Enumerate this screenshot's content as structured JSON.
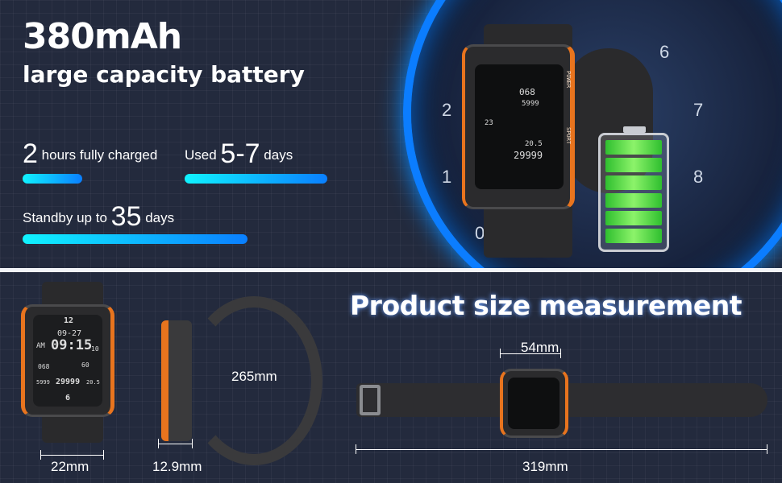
{
  "battery": {
    "title": "380mAh",
    "subtitle": "large capacity battery",
    "stats": [
      {
        "value": "2",
        "suffix": "hours fully charged",
        "prefix": "",
        "fill": 0.26
      },
      {
        "prefix": "Used",
        "value": "5-7",
        "suffix": "days",
        "fill": 1.0
      },
      {
        "prefix": "Standby up to",
        "value": "35",
        "suffix": "days",
        "fill": 1.0
      }
    ],
    "dial_numbers": [
      "0",
      "1",
      "2",
      "6",
      "7",
      "8"
    ],
    "battery_level": 1.0,
    "watch_face": {
      "heart": "068",
      "steps_small": "5999",
      "temp_left": "23",
      "temp": "20.5",
      "steps": "29999",
      "side_labels": [
        "SPORT",
        "POWER"
      ]
    }
  },
  "size": {
    "title": "Product size measurement",
    "front_watch": {
      "date": "09-27",
      "ampm": "AM",
      "time": "09:15",
      "seconds": "10",
      "top": "12",
      "bottom": "6",
      "heart": "068",
      "battery": "60",
      "steps_small": "5999",
      "steps": "29999",
      "temp": "20.5"
    },
    "width": "22mm",
    "thickness": "12.9mm",
    "strap_circumference": "265mm",
    "case_length": "54mm",
    "total_length": "319mm"
  },
  "colors": {
    "accent_start": "#10f3ff",
    "accent_end": "#0a7fff",
    "orange": "#e8741e",
    "battery_green": "#4fd63a"
  }
}
